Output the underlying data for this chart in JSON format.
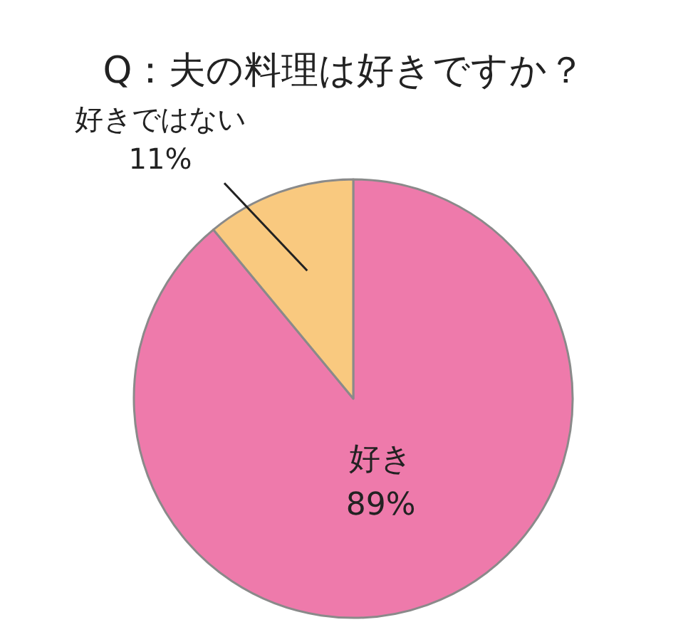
{
  "chart_data": {
    "type": "pie",
    "title": "Q：夫の料理は好きですか？",
    "categories": [
      "好き",
      "好きではない"
    ],
    "values": [
      89,
      11
    ],
    "value_labels": [
      "89%",
      "11%"
    ],
    "colors": [
      "#ee7aab",
      "#f9c97f"
    ]
  }
}
